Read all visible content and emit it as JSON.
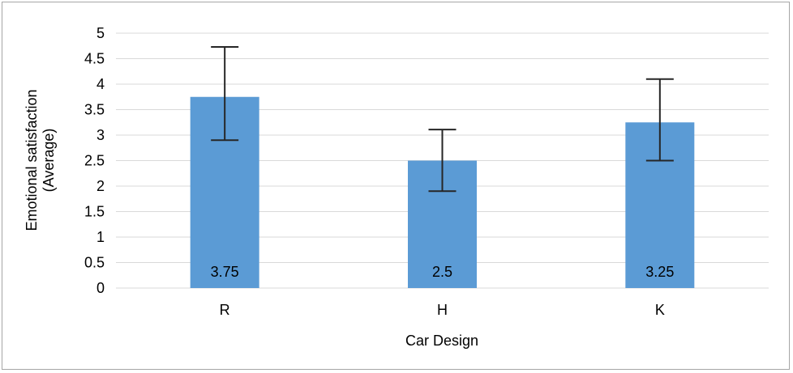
{
  "chart_data": {
    "type": "bar",
    "categories": [
      "R",
      "H",
      "K"
    ],
    "values": [
      3.75,
      2.5,
      3.25
    ],
    "error_high": [
      4.73,
      3.11,
      4.1
    ],
    "error_low": [
      2.9,
      1.9,
      2.5
    ],
    "data_labels": [
      "3.75",
      "2.5",
      "3.25"
    ],
    "title": "",
    "xlabel": "Car Design",
    "ylabel": [
      "Emotional satisfaction",
      "(Average)"
    ],
    "ylim": [
      0,
      5
    ],
    "yticks": [
      0,
      0.5,
      1,
      1.5,
      2,
      2.5,
      3,
      3.5,
      4,
      4.5,
      5
    ],
    "ytick_labels": [
      "0",
      "0.5",
      "1",
      "1.5",
      "2",
      "2.5",
      "3",
      "3.5",
      "4",
      "4.5",
      "5"
    ],
    "grid": true,
    "legend": "none",
    "bar_color": "#5b9bd5",
    "grid_color": "#d9d9d9",
    "error_bar_color": "#262626"
  }
}
